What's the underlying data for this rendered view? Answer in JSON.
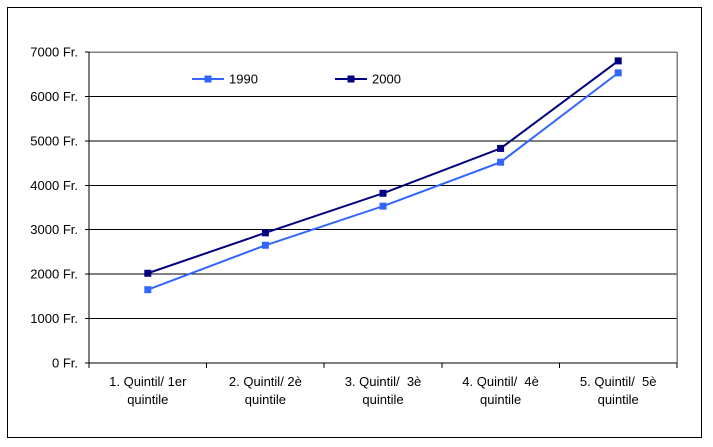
{
  "chart": {
    "background": "#ffffff",
    "outer_border_color": "#000000",
    "plot_border_color": "#808080",
    "gridline_color": "#000000",
    "axis_color": "#000000",
    "text_color": "#000000"
  },
  "chart_data": {
    "type": "line",
    "title": "",
    "xlabel": "",
    "ylabel": "",
    "categories": [
      "1. Quintil/ 1er quintile",
      "2. Quintil/ 2è quintile",
      "3. Quintil/  3è quintile",
      "4. Quintil/  4è quintile",
      "5. Quintil/  5è quintile"
    ],
    "category_lines": [
      [
        "1. Quintil/ 1er",
        "quintile"
      ],
      [
        "2. Quintil/ 2è",
        "quintile"
      ],
      [
        "3. Quintil/  3è",
        "quintile"
      ],
      [
        "4. Quintil/  4è",
        "quintile"
      ],
      [
        "5. Quintil/  5è",
        "quintile"
      ]
    ],
    "series": [
      {
        "name": "1990",
        "color": "#3366FF",
        "marker": "square",
        "values": [
          1650,
          2650,
          3530,
          4520,
          6530
        ]
      },
      {
        "name": "2000",
        "color": "#000080",
        "marker": "square",
        "values": [
          2020,
          2930,
          3820,
          4830,
          6800
        ]
      }
    ],
    "ylim": [
      0,
      7000
    ],
    "y_tick_step": 1000,
    "y_tick_labels": [
      "0 Fr.",
      "1000 Fr.",
      "2000 Fr.",
      "3000 Fr.",
      "4000 Fr.",
      "5000 Fr.",
      "6000 Fr.",
      "7000 Fr."
    ],
    "grid": true,
    "legend_position": "top-inside",
    "currency_suffix": "Fr."
  }
}
